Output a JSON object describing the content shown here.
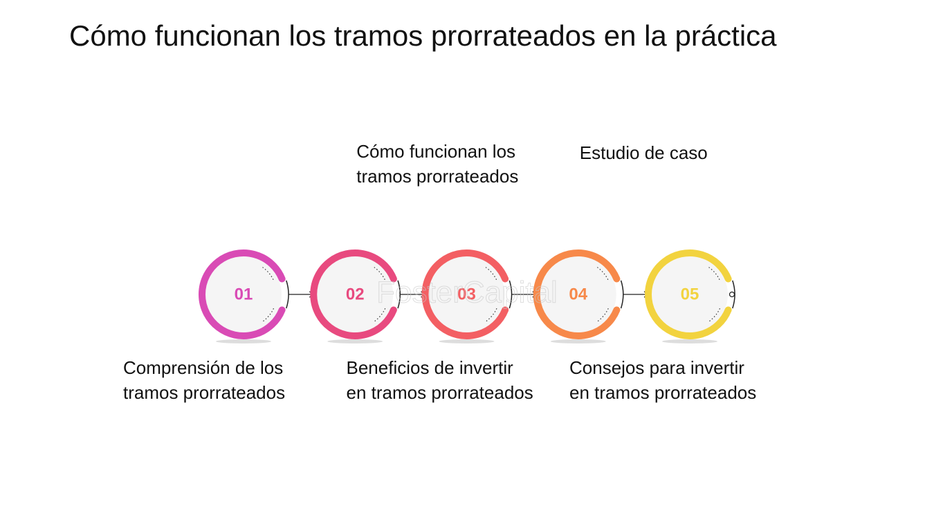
{
  "title": "Cómo funcionan los tramos prorrateados en la práctica",
  "watermark": "FosterCapital",
  "steps": [
    {
      "number": "01",
      "color": "#d94bb5",
      "label_lines": [
        "Comprensión de los",
        "tramos prorrateados"
      ],
      "label_position": "below"
    },
    {
      "number": "02",
      "color": "#e84a7f",
      "label_lines": [
        "Cómo funcionan los",
        "tramos prorrateados"
      ],
      "label_position": "above"
    },
    {
      "number": "03",
      "color": "#f35f63",
      "label_lines": [
        "Beneficios de invertir",
        "en tramos prorrateados"
      ],
      "label_position": "below"
    },
    {
      "number": "04",
      "color": "#f7894a",
      "label_lines": [
        "Estudio de caso"
      ],
      "label_position": "above"
    },
    {
      "number": "05",
      "color": "#f2d33f",
      "label_lines": [
        "Consejos para invertir",
        "en tramos prorrateados"
      ],
      "label_position": "below"
    }
  ]
}
